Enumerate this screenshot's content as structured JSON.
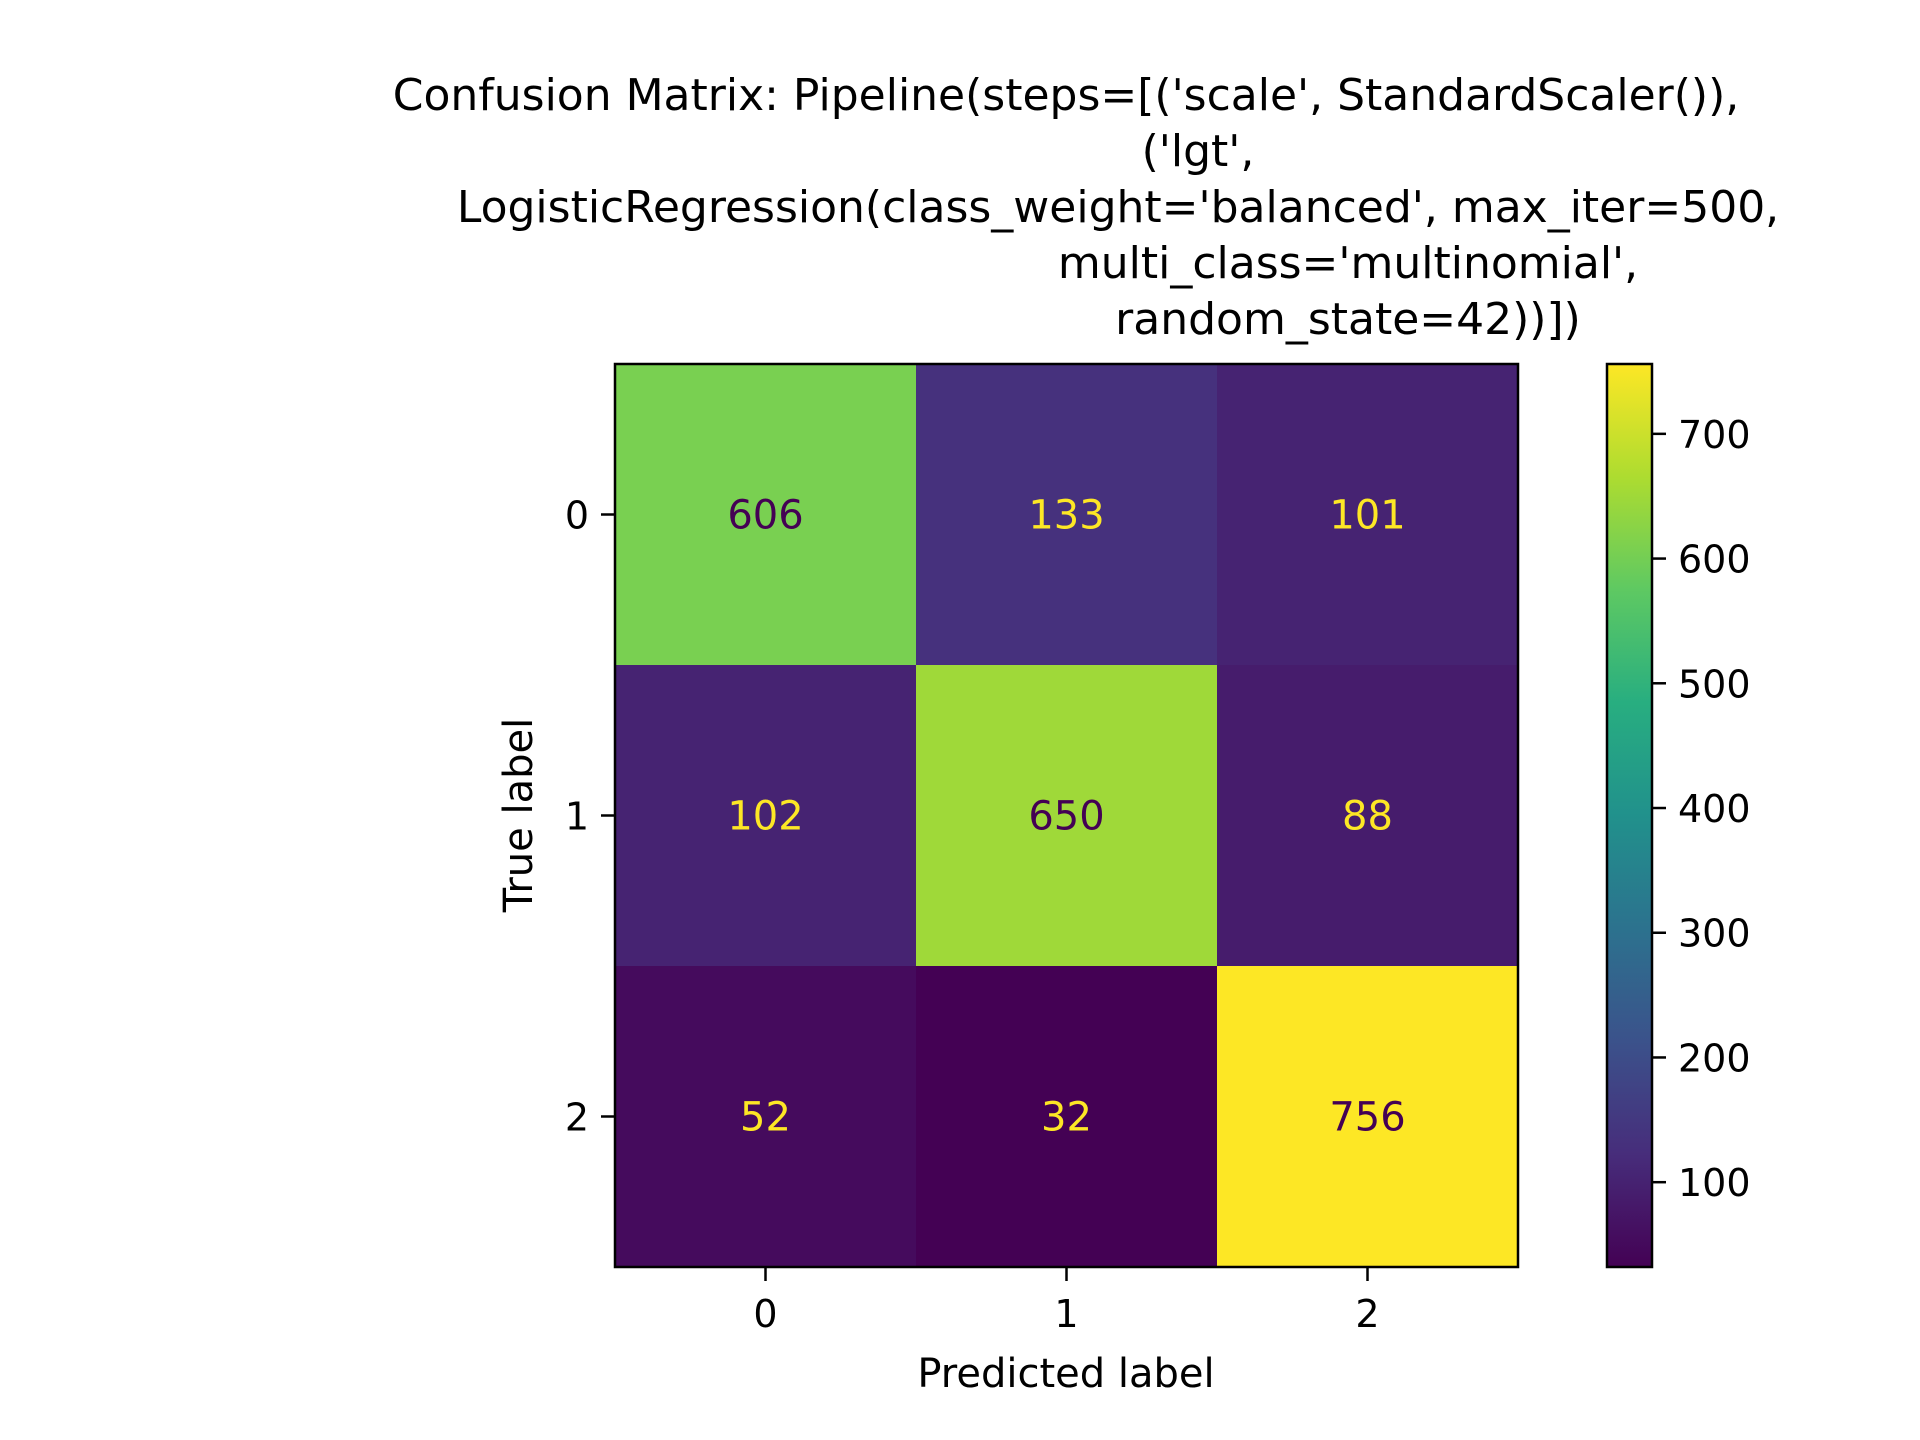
{
  "chart_data": {
    "type": "heatmap",
    "title_lines": [
      "Confusion Matrix: Pipeline(steps=[('scale', StandardScaler()),",
      "('lgt',",
      "LogisticRegression(class_weight='balanced', max_iter=500,",
      "multi_class='multinomial',",
      "random_state=42))])"
    ],
    "xlabel": "Predicted label",
    "ylabel": "True label",
    "x_categories": [
      "0",
      "1",
      "2"
    ],
    "y_categories": [
      "0",
      "1",
      "2"
    ],
    "values": [
      [
        606,
        133,
        101
      ],
      [
        102,
        650,
        88
      ],
      [
        52,
        32,
        756
      ]
    ],
    "colormap": "viridis",
    "colorbar": {
      "min": 32,
      "max": 756,
      "ticks": [
        100,
        200,
        300,
        400,
        500,
        600,
        700
      ],
      "tick_labels": [
        "100",
        "200",
        "300",
        "400",
        "500",
        "600",
        "700"
      ]
    },
    "grid": false,
    "legend": "colorbar-right"
  }
}
